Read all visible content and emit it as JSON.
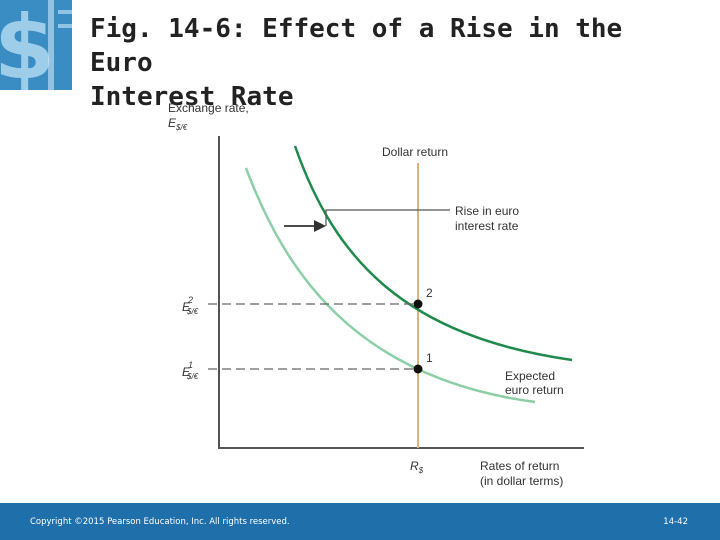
{
  "title": {
    "line1": "Fig. 14-6: Effect of a Rise in the Euro",
    "line2": "Interest Rate"
  },
  "logo_icon": "dollar-sign-icon",
  "figure": {
    "y_axis_label": "Exchange rate,",
    "y_axis_symbol": "E",
    "y_axis_sub": "$/€",
    "x_axis_label_1": "Rates of return",
    "x_axis_label_2": "(in dollar terms)",
    "dollar_return_label": "Dollar return",
    "rise_label_1": "Rise in euro",
    "rise_label_2": "interest rate",
    "expected_label_1": "Expected",
    "expected_label_2": "euro return",
    "point_1_label": "1",
    "point_2_label": "2",
    "e2_symbol": "E",
    "e2_sup": "2",
    "e2_sub": "$/€",
    "e1_symbol": "E",
    "e1_sup": "1",
    "e1_sub": "$/€",
    "r_symbol": "R",
    "r_sub": "$"
  },
  "colors": {
    "new_curve": "#1f8a4c",
    "old_curve": "#8ccfa6",
    "dollar_line": "#e0b277",
    "footer": "#1e6faa"
  },
  "footer": {
    "copyright": "Copyright ©2015 Pearson Education, Inc. All rights reserved.",
    "page": "14-42"
  }
}
